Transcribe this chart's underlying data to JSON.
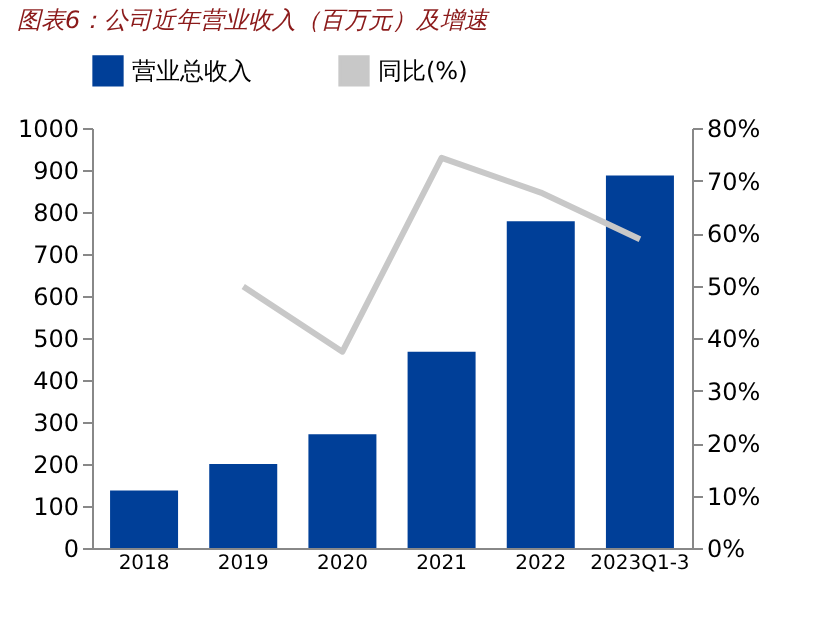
{
  "chart_data": {
    "type": "bar",
    "title": "图表6：公司近年营业收入（百万元）及增速",
    "categories": [
      "2018",
      "2019",
      "2020",
      "2021",
      "2022",
      "2023Q1-3"
    ],
    "series": [
      {
        "name": "营业总收入",
        "color": "#003f98",
        "values": [
          137,
          200,
          271,
          467,
          778,
          887
        ]
      },
      {
        "name": "同比(%)",
        "type": "line",
        "axis": "y2",
        "color": "#c8c8c8",
        "values": [
          null,
          49.8,
          37.4,
          74.3,
          67.7,
          58.8
        ]
      }
    ],
    "ylim": [
      0,
      1000
    ],
    "yticks": [
      0,
      100,
      200,
      300,
      400,
      500,
      600,
      700,
      800,
      900,
      1000
    ],
    "y2lim": [
      0,
      80
    ],
    "y2ticks": [
      {
        "value": 0,
        "label": "0%"
      },
      {
        "value": 10,
        "label": "10%"
      },
      {
        "value": 20,
        "label": "20%"
      },
      {
        "value": 30,
        "label": "30%"
      },
      {
        "value": 40,
        "label": "40%"
      },
      {
        "value": 50,
        "label": "50%"
      },
      {
        "value": 60,
        "label": "60%"
      },
      {
        "value": 70,
        "label": "70%"
      },
      {
        "value": 80,
        "label": "80%"
      }
    ],
    "grid": false,
    "legend": "top"
  }
}
